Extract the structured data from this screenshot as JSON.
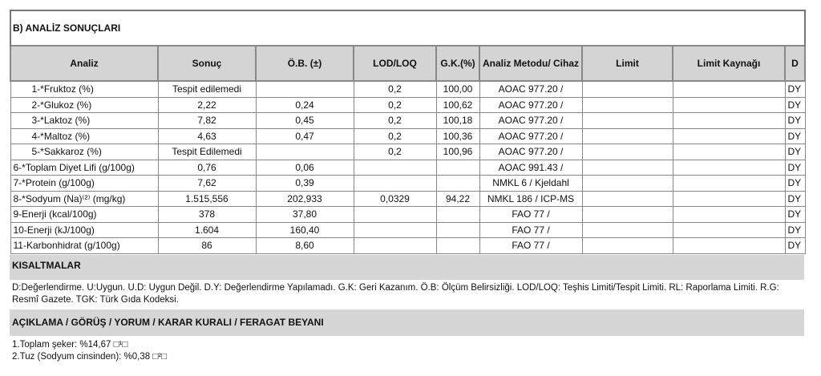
{
  "section_title": "B) ANALİZ SONUÇLARI",
  "columns": [
    "Analiz",
    "Sonuç",
    "Ö.B. (±)",
    "LOD/LOQ",
    "G.K.(%)",
    "Analiz Metodu/ Cihaz",
    "Limit",
    "Limit Kaynağı",
    "D"
  ],
  "rows": [
    {
      "analiz": "1-*Fruktoz (%)",
      "sonuc": "Tespit edilemedi",
      "ob": "",
      "lod": "0,2",
      "gk": "100,00",
      "metod": "AOAC 977.20 /",
      "limit": "",
      "kaynak": "",
      "d": "DY",
      "indent": true
    },
    {
      "analiz": "2-*Glukoz (%)",
      "sonuc": "2,22",
      "ob": "0,24",
      "lod": "0,2",
      "gk": "100,62",
      "metod": "AOAC 977.20 /",
      "limit": "",
      "kaynak": "",
      "d": "DY",
      "indent": true
    },
    {
      "analiz": "3-*Laktoz (%)",
      "sonuc": "7,82",
      "ob": "0,45",
      "lod": "0,2",
      "gk": "100,18",
      "metod": "AOAC 977.20 /",
      "limit": "",
      "kaynak": "",
      "d": "DY",
      "indent": true
    },
    {
      "analiz": "4-*Maltoz (%)",
      "sonuc": "4,63",
      "ob": "0,47",
      "lod": "0,2",
      "gk": "100,36",
      "metod": "AOAC 977.20 /",
      "limit": "",
      "kaynak": "",
      "d": "DY",
      "indent": true
    },
    {
      "analiz": "5-*Sakkaroz (%)",
      "sonuc": "Tespit Edilemedi",
      "ob": "",
      "lod": "0,2",
      "gk": "100,96",
      "metod": "AOAC 977.20 /",
      "limit": "",
      "kaynak": "",
      "d": "DY",
      "indent": true
    },
    {
      "analiz": "6-*Toplam Diyet Lifi  (g/100g)",
      "sonuc": "0,76",
      "ob": "0,06",
      "lod": "",
      "gk": "",
      "metod": "AOAC 991.43 /",
      "limit": "",
      "kaynak": "",
      "d": "DY",
      "indent": false
    },
    {
      "analiz": "7-*Protein (g/100g)",
      "sonuc": "7,62",
      "ob": "0,39",
      "lod": "",
      "gk": "",
      "metod": "NMKL 6 / Kjeldahl",
      "limit": "",
      "kaynak": "",
      "d": "DY",
      "indent": false
    },
    {
      "analiz": "8-*Sodyum (Na)⁽²⁾ (mg/kg)",
      "sonuc": "1.515,556",
      "ob": "202,933",
      "lod": "0,0329",
      "gk": "94,22",
      "metod": "NMKL 186 / ICP-MS",
      "limit": "",
      "kaynak": "",
      "d": "DY",
      "indent": false
    },
    {
      "analiz": "9-Enerji (kcal/100g)",
      "sonuc": "378",
      "ob": "37,80",
      "lod": "",
      "gk": "",
      "metod": "FAO 77 /",
      "limit": "",
      "kaynak": "",
      "d": "DY",
      "indent": false
    },
    {
      "analiz": "10-Enerji (kJ/100g)",
      "sonuc": "1.604",
      "ob": "160,40",
      "lod": "",
      "gk": "",
      "metod": "FAO 77 /",
      "limit": "",
      "kaynak": "",
      "d": "DY",
      "indent": false
    },
    {
      "analiz": "11-Karbonhidrat (g/100g)",
      "sonuc": "86",
      "ob": "8,60",
      "lod": "",
      "gk": "",
      "metod": "FAO 77 /",
      "limit": "",
      "kaynak": "",
      "d": "DY",
      "indent": false
    }
  ],
  "abbreviations": {
    "title": "KISALTMALAR",
    "text": "D:Değerlendirme. U:Uygun. U.D: Uygun Değil. D.Y: Değerlendirme Yapılamadı. G.K: Geri Kazanım. Ö.B: Ölçüm Belirsizliği. LOD/LOQ: Teşhis Limiti/Tespit Limiti. RL: Raporlama Limiti. R.G: Resmî Gazete. TGK: Türk Gıda Kodeksi."
  },
  "remarks": {
    "title": "AÇIKLAMA / GÖRÜŞ / YORUM / KARAR KURALI / FERAGAT BEYANI",
    "lines": [
      "1.Toplam şeker: %14,67 □¹□",
      "2.Tuz (Sodyum cinsinden): %0,38 □²□"
    ]
  }
}
